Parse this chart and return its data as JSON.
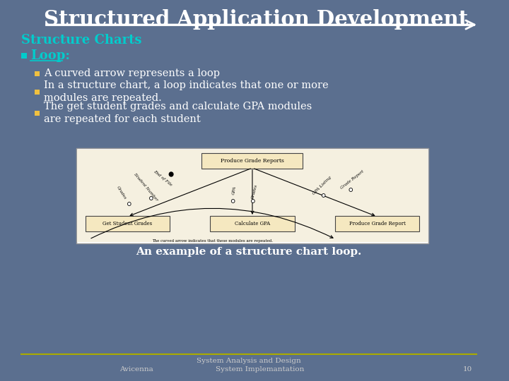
{
  "title": "Structured Application Development",
  "subtitle": "Structure Charts",
  "bullet_main": "Loop:",
  "bullets": [
    "A curved arrow represents a loop",
    "In a structure chart, a loop indicates that one or more\nmodules are repeated.",
    "The get student grades and calculate GPA modules\nare repeated for each student"
  ],
  "caption": "An example of a structure chart loop.",
  "footer_line1": "System Analysis and Design",
  "bg_color": "#5b6f8f",
  "title_color": "#ffffff",
  "subtitle_color": "#00cccc",
  "bullet_main_color": "#00cccc",
  "bullet_color": "#ffffff",
  "bullet_marker_color": "#f0c040",
  "caption_color": "#ffffff",
  "footer_color": "#cccccc",
  "diagram_bg": "#f5f0e0",
  "diagram_box_color": "#f5e8c0"
}
